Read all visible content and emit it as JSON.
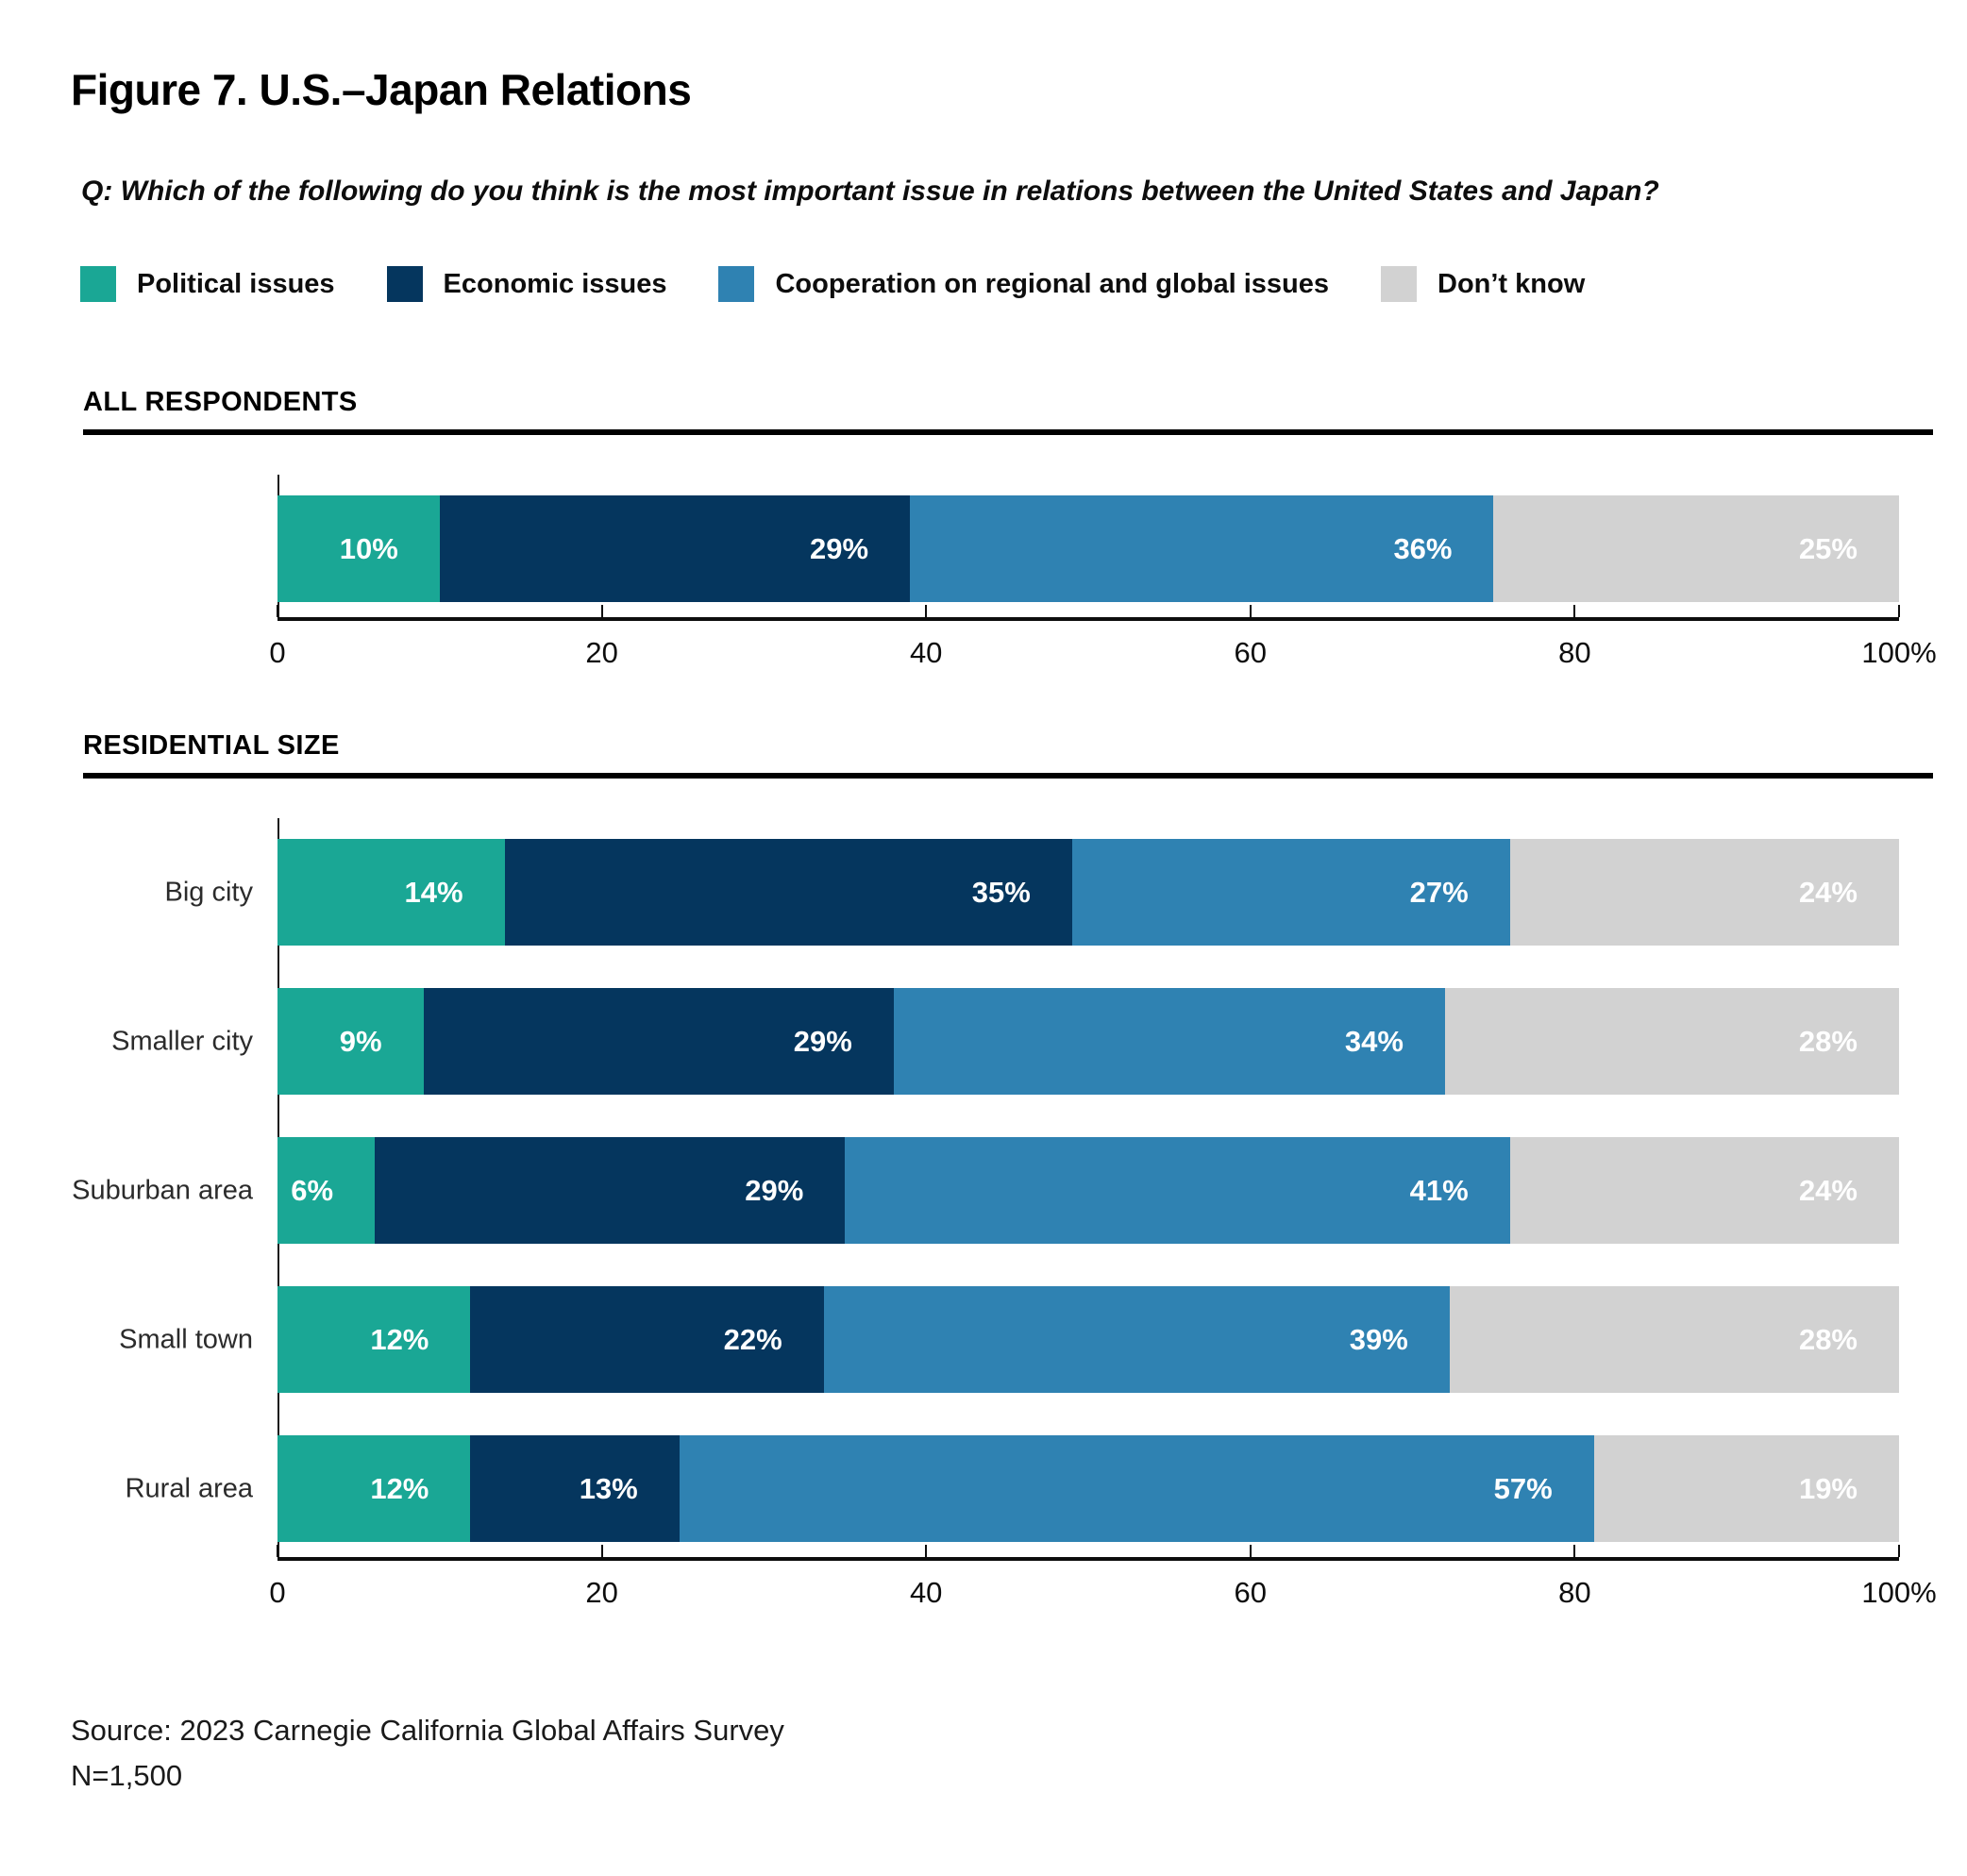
{
  "title": "Figure 7. U.S.–Japan Relations",
  "question": "Q: Which of the following do you think is the most important issue in relations between the United States and Japan?",
  "legend": [
    {
      "label": "Political issues",
      "color": "#1AA795"
    },
    {
      "label": "Economic issues",
      "color": "#05365E"
    },
    {
      "label": "Cooperation on regional and global issues",
      "color": "#2F82B2"
    },
    {
      "label": "Don’t know",
      "color": "#D2D2D2"
    }
  ],
  "chart_data": [
    {
      "type": "bar",
      "orientation": "horizontal",
      "stacked": true,
      "section_title": "ALL RESPONDENTS",
      "categories": [
        ""
      ],
      "series": [
        {
          "name": "Political issues",
          "color": "#1AA795",
          "values": [
            10
          ]
        },
        {
          "name": "Economic issues",
          "color": "#05365E",
          "values": [
            29
          ]
        },
        {
          "name": "Cooperation on regional and global issues",
          "color": "#2F82B2",
          "values": [
            36
          ]
        },
        {
          "name": "Don’t know",
          "color": "#D2D2D2",
          "values": [
            25
          ]
        }
      ],
      "xlim": [
        0,
        100
      ],
      "grid": false,
      "x_ticks": [
        {
          "pos": 0,
          "label": "0"
        },
        {
          "pos": 20,
          "label": "20"
        },
        {
          "pos": 40,
          "label": "40"
        },
        {
          "pos": 60,
          "label": "60"
        },
        {
          "pos": 80,
          "label": "80"
        },
        {
          "pos": 100,
          "label": "100%"
        }
      ]
    },
    {
      "type": "bar",
      "orientation": "horizontal",
      "stacked": true,
      "section_title": "RESIDENTIAL SIZE",
      "categories": [
        "Big city",
        "Smaller city",
        "Suburban area",
        "Small town",
        "Rural area"
      ],
      "series": [
        {
          "name": "Political issues",
          "color": "#1AA795",
          "values": [
            14,
            9,
            6,
            12,
            12
          ]
        },
        {
          "name": "Economic issues",
          "color": "#05365E",
          "values": [
            35,
            29,
            29,
            22,
            13
          ]
        },
        {
          "name": "Cooperation on regional and global issues",
          "color": "#2F82B2",
          "values": [
            27,
            34,
            41,
            39,
            57
          ]
        },
        {
          "name": "Don’t know",
          "color": "#D2D2D2",
          "values": [
            24,
            28,
            24,
            28,
            19
          ]
        }
      ],
      "xlim": [
        0,
        100
      ],
      "grid": false,
      "x_ticks": [
        {
          "pos": 0,
          "label": "0"
        },
        {
          "pos": 20,
          "label": "20"
        },
        {
          "pos": 40,
          "label": "40"
        },
        {
          "pos": 60,
          "label": "60"
        },
        {
          "pos": 80,
          "label": "80"
        },
        {
          "pos": 100,
          "label": "100%"
        }
      ]
    }
  ],
  "source": "Source: 2023 Carnegie California Global Affairs Survey",
  "sample_size": "N=1,500"
}
